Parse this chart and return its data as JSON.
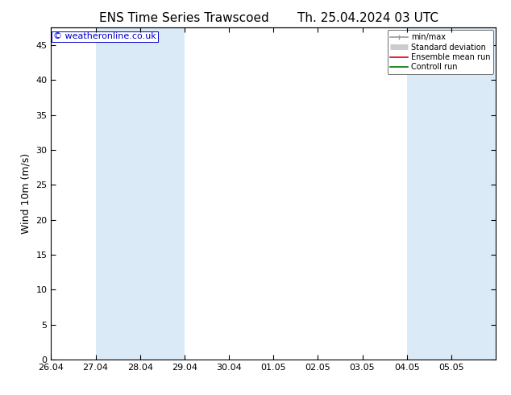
{
  "title_left": "ENS Time Series Trawscoed",
  "title_right": "Th. 25.04.2024 03 UTC",
  "ylabel": "Wind 10m (m/s)",
  "watermark": "© weatheronline.co.uk",
  "ylim": [
    0,
    47.5
  ],
  "yticks": [
    0,
    5,
    10,
    15,
    20,
    25,
    30,
    35,
    40,
    45
  ],
  "x_labels": [
    "26.04",
    "27.04",
    "28.04",
    "29.04",
    "30.04",
    "01.05",
    "02.05",
    "03.05",
    "04.05",
    "05.05"
  ],
  "shaded_bands": [
    [
      "2024-04-27",
      "2024-04-29"
    ],
    [
      "2024-04-29",
      "2024-04-29 12:00"
    ],
    [
      "2024-05-04",
      "2024-05-05 12:00"
    ]
  ],
  "band_color": "#daeaf7",
  "legend_entries": [
    {
      "label": "min/max",
      "color": "#999999",
      "lw": 1.2
    },
    {
      "label": "Standard deviation",
      "color": "#cccccc",
      "lw": 5
    },
    {
      "label": "Ensemble mean run",
      "color": "#dd0000",
      "lw": 1.2
    },
    {
      "label": "Controll run",
      "color": "#007700",
      "lw": 1.2
    }
  ],
  "bg_color": "#ffffff",
  "plot_bg_color": "#ffffff",
  "border_color": "#000000",
  "tick_label_fontsize": 8,
  "axis_label_fontsize": 9,
  "title_fontsize": 11,
  "watermark_color": "#0000cc",
  "watermark_fontsize": 8
}
